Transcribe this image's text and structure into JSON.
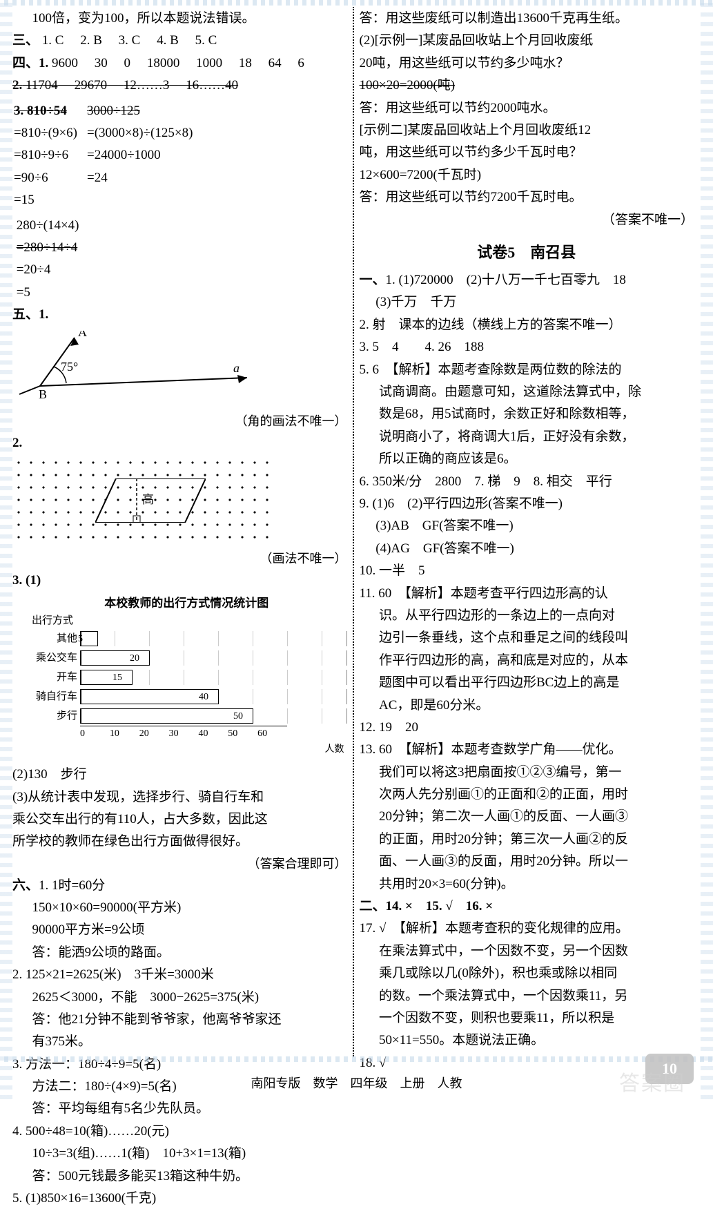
{
  "header_note": "100倍，变为100，所以本题说法错误。",
  "three": {
    "label": "三、",
    "items": [
      "1. C",
      "2. B",
      "3. C",
      "4. B",
      "5. C"
    ]
  },
  "four": {
    "label": "四、",
    "row1": [
      "1.",
      "9600",
      "30",
      "0",
      "18000",
      "1000",
      "18",
      "64",
      "6"
    ],
    "row2": [
      "2.",
      "11704",
      "29670",
      "12……3",
      "16……40"
    ],
    "calc_a_title": "3.  810÷54",
    "calc_a": [
      "=810÷(9×6)",
      "=810÷9÷6",
      "=90÷6",
      "=15"
    ],
    "calc_b_title": "3000÷125",
    "calc_b": [
      "=(3000×8)÷(125×8)",
      "=24000÷1000",
      "=24"
    ],
    "calc_c_title": "280÷(14×4)",
    "calc_c": [
      "=280÷14÷4",
      "=20÷4",
      "=5"
    ]
  },
  "five": {
    "label": "五、1.",
    "angle_value": "75°",
    "angle_A": "A",
    "angle_B": "B",
    "angle_a": "a",
    "note1": "（角的画法不唯一）",
    "two_label": "2.",
    "gao": "高",
    "note2": "（画法不唯一）",
    "three_label": "3. (1)",
    "chart_title": "本校教师的出行方式情况统计图",
    "chart_ylabel": "出行方式",
    "chart_xlabel": "人数",
    "chart_categories": [
      "其他",
      "乘公交车",
      "开车",
      "骑自行车",
      "步行"
    ],
    "chart_values": [
      5,
      20,
      15,
      40,
      50
    ],
    "chart_xmax": 60,
    "chart_xstep": 10,
    "chart_bar_border": "#000000",
    "chart_bar_fill": "#ffffff",
    "chart_bg": "#ffffff",
    "part2": "(2)130　步行",
    "part3a": "(3)从统计表中发现，选择步行、骑自行车和",
    "part3b": "乘公交车出行的有110人，占大多数，因此这",
    "part3c": "所学校的教师在绿色出行方面做得很好。",
    "part3_note": "（答案合理即可）"
  },
  "six": {
    "label": "六、",
    "q1": [
      "1. 1时=60分",
      "150×10×60=90000(平方米)",
      "90000平方米=9公顷",
      "答：能洒9公顷的路面。"
    ],
    "q2": [
      "2. 125×21=2625(米)　3千米=3000米",
      "2625＜3000，不能　3000−2625=375(米)",
      "答：他21分钟不能到爷爷家，他离爷爷家还",
      "有375米。"
    ],
    "q3": [
      "3. 方法一：180÷4÷9=5(名)",
      "方法二：180÷(4×9)=5(名)",
      "答：平均每组有5名少先队员。"
    ],
    "q4": [
      "4. 500÷48=10(箱)……20(元)",
      "10÷3=3(组)……1(箱)　10+3×1=13(箱)",
      "答：500元钱最多能买13箱这种牛奶。"
    ],
    "q5": "5. (1)850×16=13600(千克)"
  },
  "right_top": {
    "l1": "答：用这些废纸可以制造出13600千克再生纸。",
    "l2": "(2)[示例一]某废品回收站上个月回收废纸",
    "l3": "20吨，用这些纸可以节约多少吨水？",
    "l4": "100×20=2000(吨)",
    "l5": "答：用这些纸可以节约2000吨水。",
    "l6": "[示例二]某废品回收站上个月回收废纸12",
    "l7": "吨，用这些纸可以节约多少千瓦时电？",
    "l8": "12×600=7200(千瓦时)",
    "l9": "答：用这些纸可以节约7200千瓦时电。",
    "note": "（答案不唯一）"
  },
  "paper5": {
    "title": "试卷5　南召县",
    "yi": "一、",
    "q1": "1. (1)720000　(2)十八万一千七百零九　18",
    "q1b": "　 (3)千万　千万",
    "q2": "2. 射　课本的边线（横线上方的答案不唯一）",
    "q3": "3. 5　4　　4. 26　188",
    "q5a": "5. 6　【解析】本题考查除数是两位数的除法的",
    "q5b": "试商调商。由题意可知，这道除法算式中，除",
    "q5c": "数是68，用5试商时，余数正好和除数相等，",
    "q5d": "说明商小了，将商调大1后，正好没有余数，",
    "q5e": "所以正确的商应该是6。",
    "q6": "6. 350米/分　2800　7. 梯　9　8. 相交　平行",
    "q9a": "9. (1)6　(2)平行四边形(答案不唯一)",
    "q9b": "　 (3)AB　GF(答案不唯一)",
    "q9c": "　 (4)AG　GF(答案不唯一)",
    "q10": "10. 一半　5",
    "q11a": "11. 60　【解析】本题考查平行四边形高的认",
    "q11b": "识。从平行四边形的一条边上的一点向对",
    "q11c": "边引一条垂线，这个点和垂足之间的线段叫",
    "q11d": "作平行四边形的高，高和底是对应的，从本",
    "q11e": "题图中可以看出平行四边形BC边上的高是",
    "q11f": "AC，即是60分米。",
    "q12": "12. 19　20",
    "q13a": "13. 60　【解析】本题考查数学广角——优化。",
    "q13b": "我们可以将这3把扇面按①②③编号，第一",
    "q13c": "次两人先分别画①的正面和②的正面，用时",
    "q13d": "20分钟；第二次一人画①的反面、一人画③",
    "q13e": "的正面，用时20分钟；第三次一人画②的反",
    "q13f": "面、一人画③的反面，用时20分钟。所以一",
    "q13g": "共用时20×3=60(分钟)。",
    "er": "二、14. ×　15. √　16. ×",
    "q17a": "17. √　【解析】本题考查积的变化规律的应用。",
    "q17b": "在乘法算式中，一个因数不变，另一个因数",
    "q17c": "乘几或除以几(0除外)，积也乘或除以相同",
    "q17d": "的数。一个乘法算式中，一个因数乘11，另",
    "q17e": "一个因数不变，则积也要乘11，所以积是",
    "q17f": "50×11=550。本题说法正确。",
    "q18": "18. √"
  },
  "footer_text": "南阳专版　数学　四年级　上册　人教",
  "page_num": "10",
  "watermark": "答案圈"
}
